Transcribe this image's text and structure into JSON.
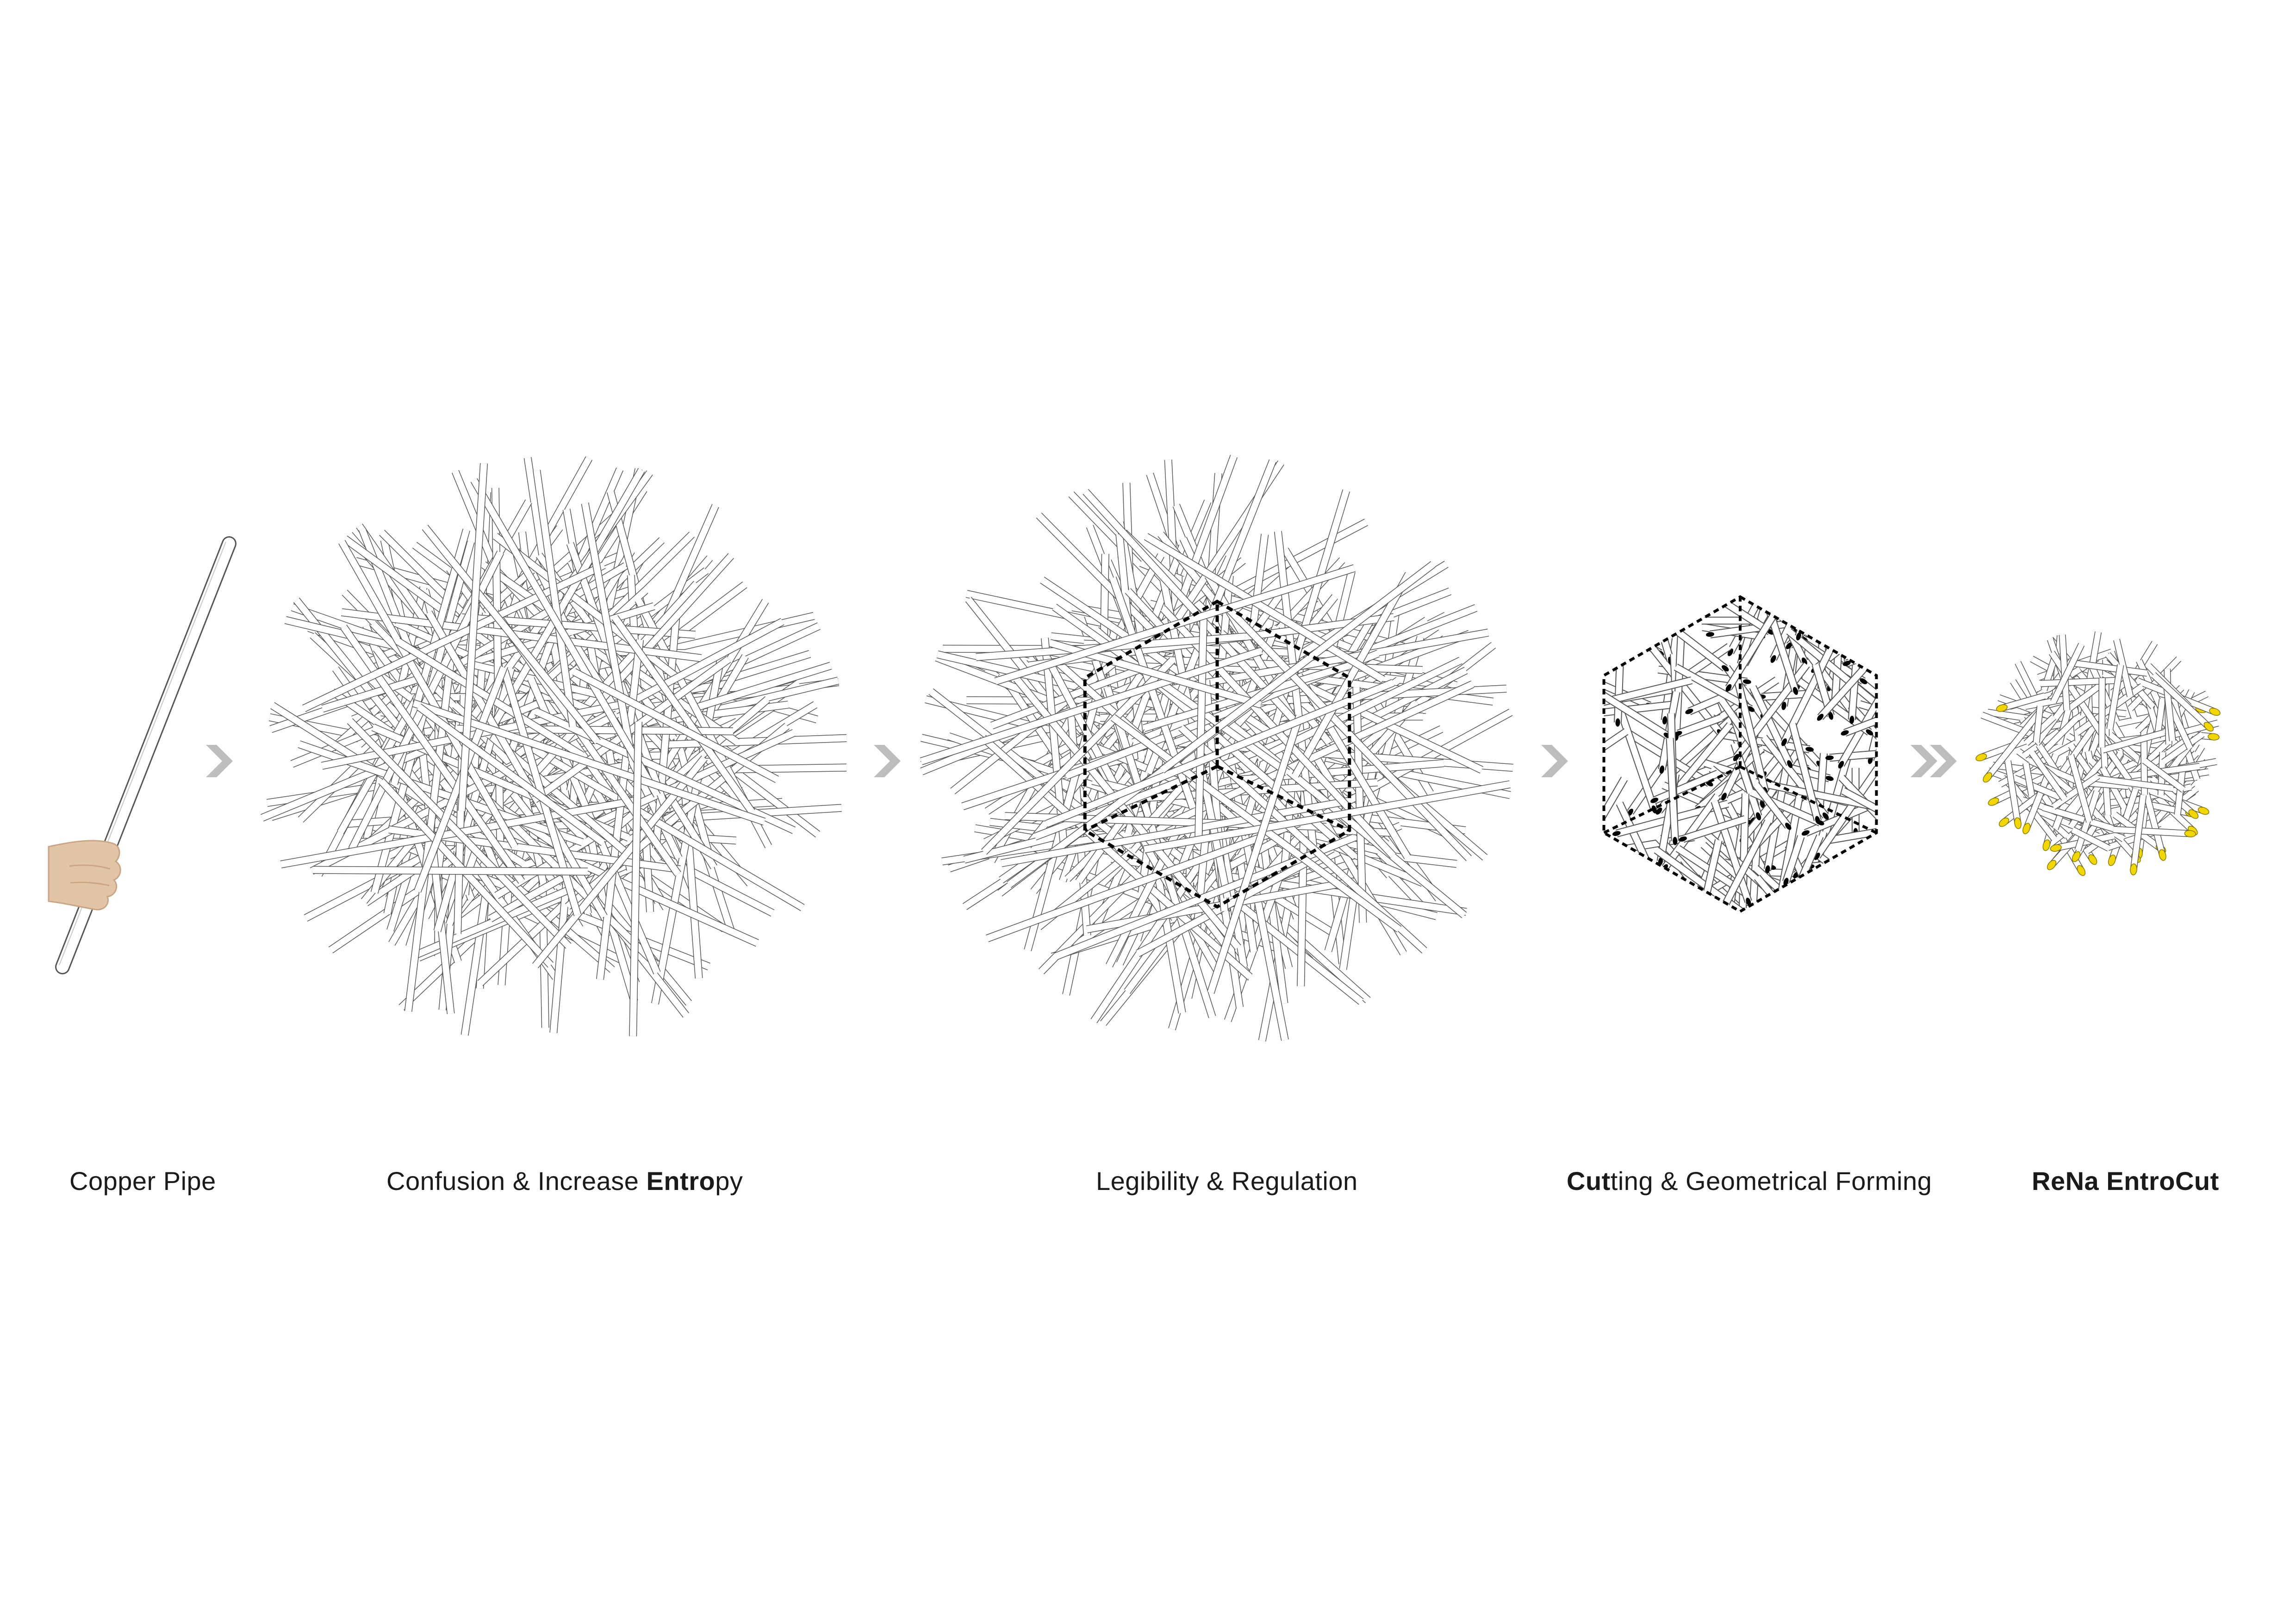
{
  "steps": [
    {
      "id": "copper-pipe",
      "label_pre": "Copper Pipe",
      "label_bold": "",
      "label_post": ""
    },
    {
      "id": "entropy",
      "label_pre": "Confusion & Increase ",
      "label_bold": "Entro",
      "label_post": "py"
    },
    {
      "id": "regulation",
      "label_pre": "Legibility & Regulation",
      "label_bold": "",
      "label_post": ""
    },
    {
      "id": "cutting",
      "label_pre": "",
      "label_bold": "Cut",
      "label_post": "ting & Geometrical Forming"
    },
    {
      "id": "result",
      "label_pre": "",
      "label_bold": "ReNa EntroCut",
      "label_post": ""
    }
  ],
  "colors": {
    "pipe_fill": "#ffffff",
    "pipe_stroke": "#555555",
    "arrow": "#bdbdbd",
    "cut_black": "#000000",
    "cut_yellow": "#f2d600",
    "hand": "#e2c4a6"
  },
  "icons": {
    "arrow_single": "chevron-right-icon",
    "arrow_double": "double-chevron-right-icon"
  }
}
